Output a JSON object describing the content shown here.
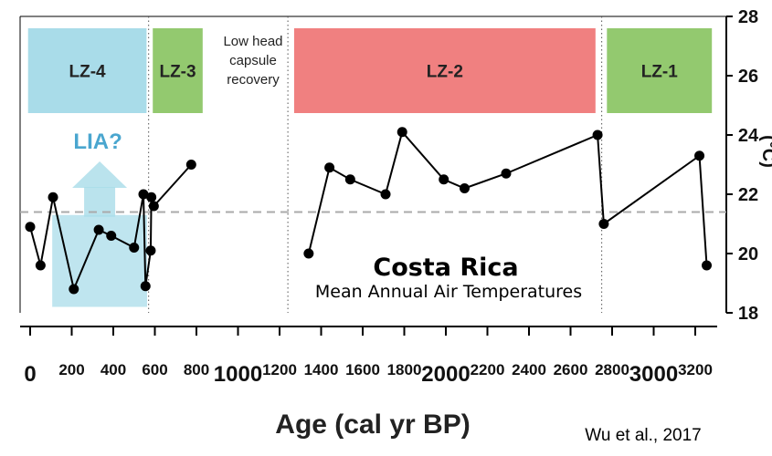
{
  "chart_data": {
    "type": "line",
    "title": "Costa Rica",
    "subtitle": "Mean Annual Air Temperatures",
    "xlabel": "Age (cal yr BP)",
    "ylabel": "(°C)",
    "credit": "Wu et al., 2017",
    "xlim": [
      -20,
      3280
    ],
    "ylim": [
      18,
      28
    ],
    "x_ticks": [
      {
        "v": 0,
        "label": "0",
        "major": true
      },
      {
        "v": 200,
        "label": "200",
        "major": false
      },
      {
        "v": 400,
        "label": "400",
        "major": false
      },
      {
        "v": 600,
        "label": "600",
        "major": false
      },
      {
        "v": 800,
        "label": "800",
        "major": false
      },
      {
        "v": 1000,
        "label": "1000",
        "major": true
      },
      {
        "v": 1200,
        "label": "1200",
        "major": false
      },
      {
        "v": 1400,
        "label": "1400",
        "major": false
      },
      {
        "v": 1600,
        "label": "1600",
        "major": false
      },
      {
        "v": 1800,
        "label": "1800",
        "major": false
      },
      {
        "v": 2000,
        "label": "2000",
        "major": true
      },
      {
        "v": 2200,
        "label": "2200",
        "major": false
      },
      {
        "v": 2400,
        "label": "2400",
        "major": false
      },
      {
        "v": 2600,
        "label": "2600",
        "major": false
      },
      {
        "v": 2800,
        "label": "2800",
        "major": false
      },
      {
        "v": 3000,
        "label": "3000",
        "major": true
      },
      {
        "v": 3200,
        "label": "3200",
        "major": false
      }
    ],
    "y_ticks": [
      {
        "v": 18,
        "label": "18"
      },
      {
        "v": 20,
        "label": "20"
      },
      {
        "v": 22,
        "label": "22"
      },
      {
        "v": 24,
        "label": "24"
      },
      {
        "v": 26,
        "label": "26"
      },
      {
        "v": 28,
        "label": "28"
      }
    ],
    "reference_line": 21.4,
    "series": [
      {
        "segments": [
          [
            [
              0,
              20.9
            ],
            [
              50,
              19.6
            ],
            [
              110,
              21.9
            ],
            [
              210,
              18.8
            ],
            [
              330,
              20.8
            ],
            [
              390,
              20.6
            ],
            [
              500,
              20.2
            ],
            [
              545,
              22.0
            ],
            [
              555,
              18.9
            ],
            [
              580,
              20.1
            ],
            [
              583,
              21.9
            ],
            [
              595,
              21.6
            ],
            [
              775,
              23.0
            ]
          ],
          [
            [
              1340,
              20.0
            ],
            [
              1440,
              22.9
            ],
            [
              1540,
              22.5
            ],
            [
              1710,
              22.0
            ],
            [
              1790,
              24.1
            ],
            [
              1990,
              22.5
            ],
            [
              2090,
              22.2
            ],
            [
              2290,
              22.7
            ],
            [
              2730,
              24.0
            ],
            [
              2760,
              21.0
            ],
            [
              3220,
              23.3
            ],
            [
              3255,
              19.6
            ]
          ]
        ]
      }
    ],
    "zones": [
      {
        "label": "LZ-4",
        "x0": -10,
        "x1": 560,
        "color": "#a9dce9"
      },
      {
        "label": "LZ-3",
        "x0": 590,
        "x1": 830,
        "color": "#93c96f"
      },
      {
        "label": "LZ-2",
        "x0": 1270,
        "x1": 2720,
        "color": "#f08080"
      },
      {
        "label": "LZ-1",
        "x0": 2775,
        "x1": 3280,
        "color": "#93c96f"
      }
    ],
    "zone_boundaries": [
      570,
      1240,
      2750
    ],
    "gap_note": [
      "Low head",
      "capsule",
      "recovery"
    ],
    "lia_label": "LIA?",
    "lia_box": {
      "x0": 115,
      "x1": 545,
      "y0": 18.2,
      "y1": 21.3,
      "color": "#a9dce9"
    },
    "line_color": "#000000",
    "reference_color": "#aaaaaa"
  }
}
